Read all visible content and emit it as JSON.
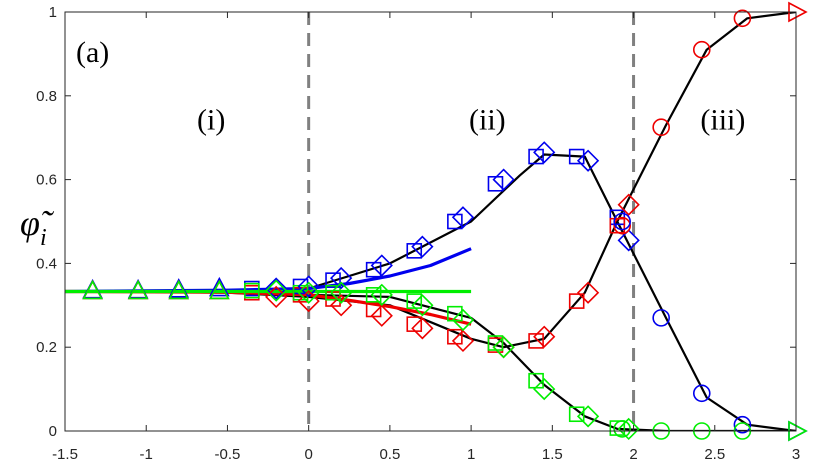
{
  "chart_data": {
    "type": "line",
    "panel_label": "(a)",
    "ylabel": "φ̃",
    "ylabel_subscript": "i",
    "xlim": [
      -1.5,
      3
    ],
    "ylim": [
      0,
      1
    ],
    "xticks": [
      -1.5,
      -1,
      -0.5,
      0,
      0.5,
      1,
      1.5,
      2,
      2.5,
      3
    ],
    "xtick_labels": [
      "-1.5",
      "-1",
      "-0.5",
      "0",
      "0.5",
      "1",
      "1.5",
      "2",
      "2.5",
      "3"
    ],
    "yticks": [
      0,
      0.2,
      0.4,
      0.6,
      0.8,
      1
    ],
    "ytick_labels": [
      "0",
      "0.2",
      "0.4",
      "0.6",
      "0.8",
      "1"
    ],
    "vlines": [
      0,
      2
    ],
    "regions": [
      {
        "label": "(i)",
        "x": -0.6,
        "y": 0.72
      },
      {
        "label": "(ii)",
        "x": 1.1,
        "y": 0.72
      },
      {
        "label": "(iii)",
        "x": 2.55,
        "y": 0.72
      }
    ],
    "colors": {
      "blue": "#0000ee",
      "red": "#ee0000",
      "green": "#00ee00",
      "black": "#000000",
      "dash": "#808080",
      "axis": "#262626"
    },
    "black_lines": [
      {
        "name": "blue-branch",
        "x": [
          -1.33,
          -0.5,
          0,
          0.5,
          1.0,
          1.3,
          1.45,
          1.7,
          1.9,
          2.2,
          2.45,
          2.7,
          3.0
        ],
        "y": [
          0.333,
          0.335,
          0.34,
          0.4,
          0.5,
          0.61,
          0.66,
          0.655,
          0.5,
          0.27,
          0.08,
          0.015,
          0.0
        ]
      },
      {
        "name": "red-branch",
        "x": [
          -1.33,
          -0.5,
          0,
          0.5,
          1.0,
          1.2,
          1.45,
          1.7,
          1.9,
          2.2,
          2.45,
          2.7,
          3.0
        ],
        "y": [
          0.333,
          0.33,
          0.32,
          0.3,
          0.22,
          0.2,
          0.22,
          0.33,
          0.5,
          0.73,
          0.91,
          0.985,
          1.0
        ]
      },
      {
        "name": "green-branch",
        "x": [
          -1.33,
          -0.5,
          0,
          0.5,
          1.0,
          1.2,
          1.45,
          1.7,
          1.9,
          2.2,
          2.5,
          3.0
        ],
        "y": [
          0.333,
          0.332,
          0.325,
          0.32,
          0.27,
          0.21,
          0.11,
          0.035,
          0.005,
          0.0,
          0.0,
          0.0
        ]
      }
    ],
    "approx_curves": [
      {
        "name": "blue-approx",
        "color": "blue",
        "x": [
          -1.5,
          -0.5,
          0,
          0.25,
          0.5,
          0.75,
          1.0
        ],
        "y": [
          0.333,
          0.336,
          0.34,
          0.352,
          0.37,
          0.395,
          0.435
        ]
      },
      {
        "name": "red-approx",
        "color": "red",
        "x": [
          -1.5,
          -0.5,
          0,
          0.25,
          0.5,
          0.75,
          1.0
        ],
        "y": [
          0.333,
          0.331,
          0.325,
          0.312,
          0.297,
          0.278,
          0.255
        ]
      },
      {
        "name": "green-approx",
        "color": "green",
        "x": [
          -1.5,
          -0.5,
          0,
          0.5,
          1.0
        ],
        "y": [
          0.333,
          0.333,
          0.333,
          0.333,
          0.333
        ]
      }
    ],
    "markers": [
      {
        "name": "blue-triangle",
        "color": "blue",
        "shape": "triangle-up",
        "x": [
          -1.33,
          -1.05,
          -0.8,
          -0.55
        ],
        "y": [
          0.335,
          0.335,
          0.337,
          0.34
        ]
      },
      {
        "name": "red-triangle",
        "color": "red",
        "shape": "triangle-up",
        "x": [
          -1.33,
          -1.05,
          -0.8,
          -0.55
        ],
        "y": [
          0.333,
          0.333,
          0.333,
          0.333
        ]
      },
      {
        "name": "green-triangle",
        "color": "green",
        "shape": "triangle-up",
        "x": [
          -1.33,
          -1.05,
          -0.8,
          -0.55
        ],
        "y": [
          0.333,
          0.333,
          0.333,
          0.333
        ]
      },
      {
        "name": "blue-square",
        "color": "blue",
        "shape": "square",
        "x": [
          -0.35,
          -0.05,
          0.15,
          0.4,
          0.65,
          0.9,
          1.15,
          1.4,
          1.65,
          1.9
        ],
        "y": [
          0.34,
          0.345,
          0.36,
          0.385,
          0.43,
          0.5,
          0.59,
          0.655,
          0.655,
          0.51
        ]
      },
      {
        "name": "red-square",
        "color": "red",
        "shape": "square",
        "x": [
          -0.35,
          -0.05,
          0.15,
          0.4,
          0.65,
          0.9,
          1.15,
          1.4,
          1.65,
          1.9
        ],
        "y": [
          0.33,
          0.325,
          0.315,
          0.29,
          0.255,
          0.225,
          0.205,
          0.215,
          0.31,
          0.49
        ]
      },
      {
        "name": "green-square",
        "color": "green",
        "shape": "square",
        "x": [
          -0.35,
          -0.05,
          0.15,
          0.4,
          0.65,
          0.9,
          1.15,
          1.4,
          1.65,
          1.9
        ],
        "y": [
          0.335,
          0.33,
          0.33,
          0.325,
          0.31,
          0.28,
          0.21,
          0.12,
          0.04,
          0.007
        ]
      },
      {
        "name": "blue-diamond",
        "color": "blue",
        "shape": "diamond",
        "x": [
          -0.2,
          0.0,
          0.2,
          0.45,
          0.7,
          0.95,
          1.2,
          1.45,
          1.72,
          1.97
        ],
        "y": [
          0.34,
          0.345,
          0.365,
          0.395,
          0.44,
          0.51,
          0.6,
          0.665,
          0.645,
          0.455
        ]
      },
      {
        "name": "red-diamond",
        "color": "red",
        "shape": "diamond",
        "x": [
          -0.2,
          0.0,
          0.2,
          0.45,
          0.7,
          0.95,
          1.2,
          1.45,
          1.72,
          1.97
        ],
        "y": [
          0.32,
          0.31,
          0.3,
          0.275,
          0.245,
          0.215,
          0.2,
          0.225,
          0.33,
          0.54
        ]
      },
      {
        "name": "green-diamond",
        "color": "green",
        "shape": "diamond",
        "x": [
          -0.2,
          0.0,
          0.2,
          0.45,
          0.7,
          0.95,
          1.2,
          1.45,
          1.72,
          1.97
        ],
        "y": [
          0.335,
          0.33,
          0.33,
          0.325,
          0.3,
          0.265,
          0.2,
          0.1,
          0.035,
          0.005
        ]
      },
      {
        "name": "red-circle",
        "color": "red",
        "shape": "circle",
        "x": [
          1.93,
          2.17,
          2.42,
          2.67
        ],
        "y": [
          0.49,
          0.725,
          0.91,
          0.985
        ]
      },
      {
        "name": "blue-circle",
        "color": "blue",
        "shape": "circle",
        "x": [
          1.93,
          2.17,
          2.42,
          2.67
        ],
        "y": [
          0.5,
          0.27,
          0.09,
          0.015
        ]
      },
      {
        "name": "green-circle",
        "color": "green",
        "shape": "circle",
        "x": [
          1.93,
          2.17,
          2.42,
          2.67
        ],
        "y": [
          0.005,
          0.0,
          0.0,
          0.0
        ]
      },
      {
        "name": "red-triangle-right",
        "color": "red",
        "shape": "triangle-right",
        "x": [
          3.0
        ],
        "y": [
          1.0
        ]
      },
      {
        "name": "blue-triangle-right",
        "color": "blue",
        "shape": "triangle-right",
        "x": [
          3.0
        ],
        "y": [
          0.0
        ]
      },
      {
        "name": "green-triangle-right",
        "color": "green",
        "shape": "triangle-right",
        "x": [
          3.0
        ],
        "y": [
          0.0
        ]
      }
    ]
  }
}
